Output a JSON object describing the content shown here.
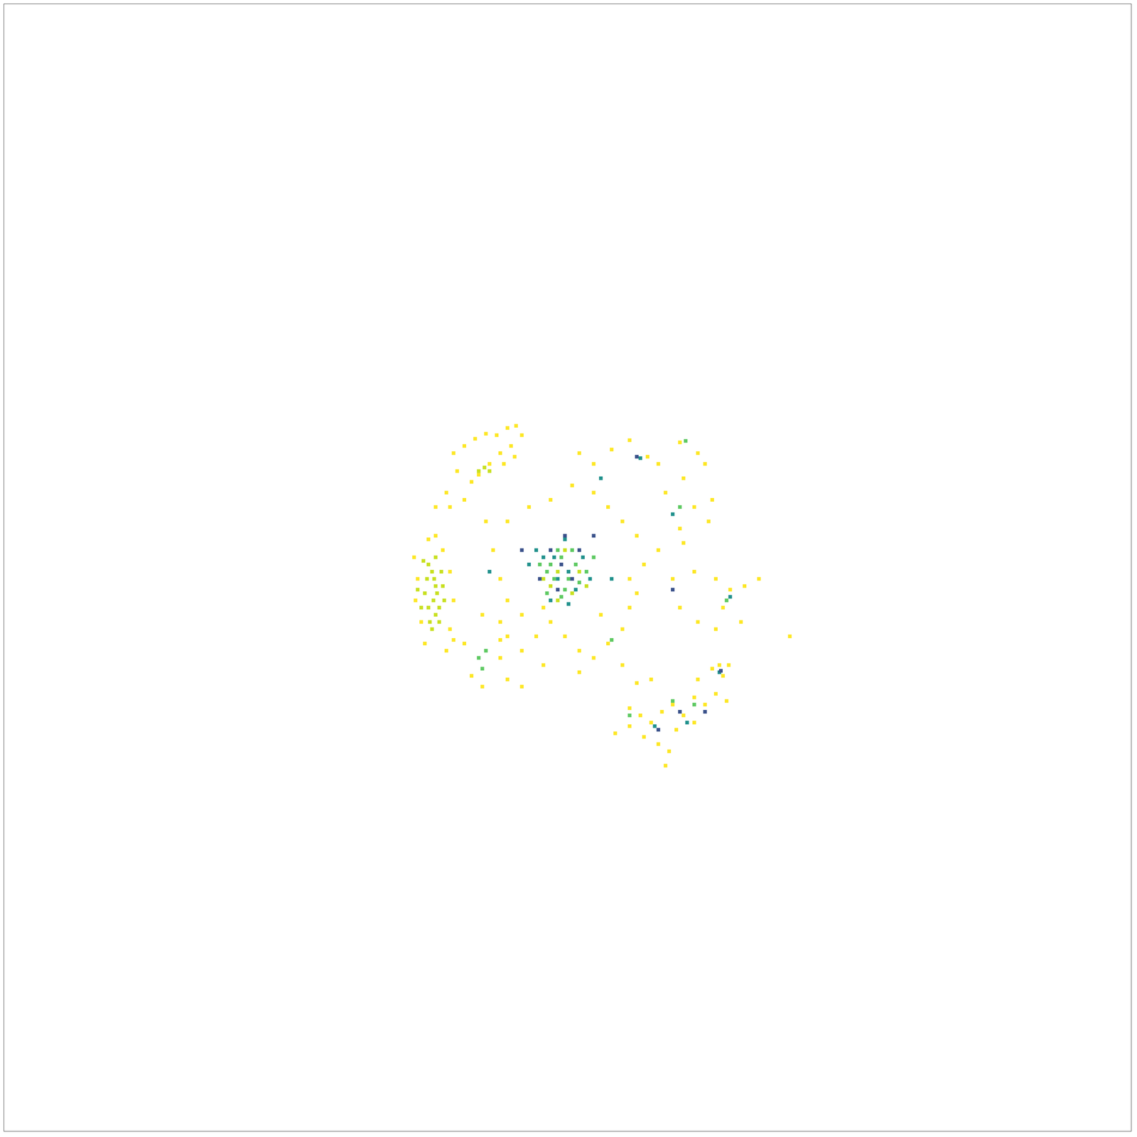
{
  "chart_data": {
    "type": "scatter",
    "xlim": [
      0,
      1568
    ],
    "ylim": [
      0,
      1568
    ],
    "tick_labels": false,
    "grid": false,
    "marker": "square",
    "series": [
      {
        "color": "#fde725",
        "x": [
          625,
          640,
          655,
          670,
          685,
          700,
          712,
          720,
          705,
          690,
          675,
          660,
          650,
          630,
          615,
          600,
          620,
          640,
          695,
          710,
          800,
          820,
          845,
          870,
          895,
          910,
          940,
          965,
          975,
          945,
          920,
          960,
          980,
          940,
          945,
          985,
          910,
          930,
          960,
          990,
          1010,
          1030,
          1050,
          1000,
          1025,
          965,
          940,
          990,
          1093,
          850,
          870,
          885,
          900,
          915,
          930,
          945,
          960,
          975,
          990,
          1005,
          1000,
          985,
          965,
          935,
          910,
          925,
          920,
          890,
          880,
          900,
          960,
          1008,
          995,
          870,
          670,
          680,
          690,
          700,
          690,
          700,
          720,
          740,
          760,
          780,
          800,
          820,
          840,
          860,
          870,
          880,
          890,
          880,
          860,
          840,
          820,
          790,
          760,
          730,
          700,
          665,
          690,
          750,
          800,
          860,
          830,
          750,
          720,
          870,
          650,
          665,
          700,
          720,
          690,
          640,
          570,
          575,
          572,
          580,
          585,
          590,
          600,
          610,
          620,
          625,
          620,
          615,
          625
        ],
        "values": [
          943,
          953,
          963,
          970,
          968,
          978,
          981,
          968,
          953,
          943,
          928,
          913,
          903,
          918,
          888,
          868,
          868,
          878,
          928,
          938,
          943,
          928,
          948,
          961,
          938,
          928,
          958,
          943,
          928,
          908,
          888,
          868,
          848,
          838,
          818,
          878,
          808,
          768,
          778,
          768,
          753,
          758,
          768,
          728,
          708,
          708,
          728,
          698,
          688,
          553,
          563,
          578,
          568,
          583,
          593,
          578,
          603,
          593,
          608,
          598,
          633,
          643,
          628,
          558,
          538,
          528,
          508,
          548,
          623,
          628,
          568,
          648,
          648,
          588,
          848,
          808,
          768,
          738,
          708,
          688,
          668,
          688,
          708,
          688,
          668,
          658,
          678,
          698,
          728,
          748,
          788,
          828,
          848,
          868,
          888,
          898,
          878,
          868,
          848,
          718,
          683,
          648,
          638,
          648,
          718,
          728,
          718,
          768,
          633,
          618,
          628,
          618,
          658,
          678,
          798,
          768,
          738,
          708,
          678,
          823,
          828,
          808,
          778,
          738,
          698,
          668,
          683
        ]
      },
      {
        "color": "#c8e020",
        "x": [
          590,
          595,
          598,
          600,
          602,
          597,
          605,
          600,
          605,
          595,
          608,
          610,
          612,
          588,
          585,
          590,
          592,
          575,
          580,
          583,
          600,
          660,
          668,
          675,
          770,
          790,
          760,
          800,
          780,
          750,
          810,
          770
        ],
        "values": [
          788,
          778,
          768,
          758,
          748,
          738,
          728,
          718,
          708,
          698,
          778,
          758,
          738,
          768,
          748,
          728,
          708,
          753,
          728,
          793,
          798,
          918,
          923,
          918,
          778,
          748,
          758,
          778,
          808,
          768,
          758,
          738
        ]
      },
      {
        "color": "#5ec962",
        "x": [
          760,
          775,
          785,
          795,
          765,
          755,
          780,
          800,
          770,
          745,
          790,
          810,
          775,
          755,
          820,
          660,
          665,
          670,
          948,
          940,
          1005,
          845,
          870,
          930,
          960
        ],
        "values": [
          788,
          798,
          768,
          788,
          768,
          778,
          753,
          763,
          808,
          788,
          808,
          778,
          743,
          748,
          798,
          658,
          643,
          668,
          960,
          868,
          738,
          683,
          578,
          598,
          593
        ]
      },
      {
        "color": "#21918c",
        "x": [
          765,
          785,
          750,
          795,
          770,
          780,
          740,
          805,
          760,
          785,
          730,
          815,
          885,
          830,
          930,
          995,
          905,
          950,
          1010,
          675,
          845
        ],
        "values": [
          798,
          778,
          798,
          753,
          768,
          823,
          808,
          798,
          738,
          733,
          788,
          768,
          936,
          908,
          858,
          638,
          563,
          568,
          743,
          778,
          768
        ]
      },
      {
        "color": "#3b528b",
        "x": [
          775,
          790,
          760,
          800,
          780,
          745,
          770,
          720,
          820,
          880,
          930,
          997,
          940,
          910,
          975
        ],
        "values": [
          788,
          768,
          808,
          808,
          828,
          768,
          753,
          808,
          828,
          938,
          753,
          640,
          583,
          558,
          583
        ]
      }
    ]
  }
}
